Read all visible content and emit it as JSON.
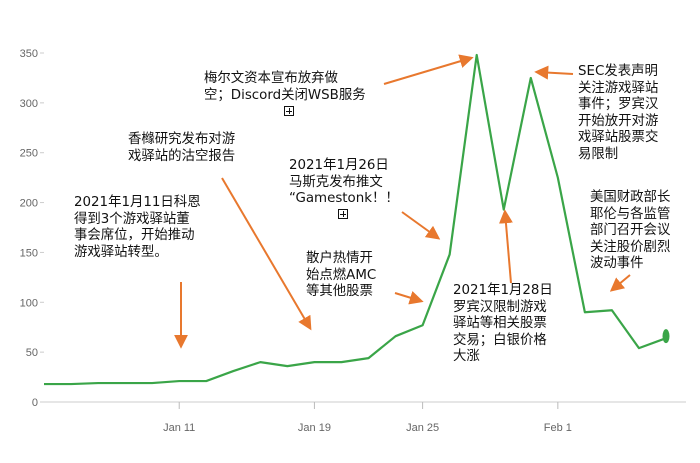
{
  "chart_data": {
    "type": "area",
    "x": [
      "Jan 4",
      "Jan 5",
      "Jan 6",
      "Jan 7",
      "Jan 8",
      "Jan 11",
      "Jan 12",
      "Jan 13",
      "Jan 14",
      "Jan 15",
      "Jan 19",
      "Jan 20",
      "Jan 21",
      "Jan 22",
      "Jan 25",
      "Jan 26",
      "Jan 27",
      "Jan 28",
      "Jan 29",
      "Feb 1",
      "Feb 2",
      "Feb 3",
      "Feb 4",
      "Feb 5"
    ],
    "values": [
      18,
      18,
      19,
      19,
      19,
      21,
      21,
      31,
      40,
      36,
      40,
      40,
      44,
      66,
      77,
      148,
      348,
      193,
      325,
      225,
      90,
      92,
      54,
      64
    ],
    "highlighted": [
      27,
      28,
      29
    ],
    "ylim": [
      0,
      350
    ],
    "yticks": [
      "0",
      "50",
      "100",
      "150",
      "200",
      "250",
      "300",
      "350"
    ],
    "xticks": [
      "Jan 11",
      "Jan 19",
      "Jan 25",
      "Feb 1"
    ],
    "colors": {
      "line": "#3aa548",
      "area_top": "#bfe2c4",
      "arrow": "#e8782e",
      "axis_text": "#666666"
    }
  },
  "annotations": {
    "a1": {
      "lines": [
        "2021年1月11日科恩",
        "得到3个游戏驿站董",
        "事会席位，开始推动",
        "游戏驿站转型。"
      ]
    },
    "a2": {
      "lines": [
        "香橼研究发布对游",
        "戏驿站的沽空报告"
      ]
    },
    "a3": {
      "lines": [
        "梅尔文资本宣布放弃做",
        "空；Discord关闭WSB服务"
      ]
    },
    "a4": {
      "lines": [
        "2021年1月26日",
        "马斯克发布推文",
        "“Gamestonk！！"
      ]
    },
    "a5": {
      "lines": [
        "散户热情开",
        "始点燃AMC",
        "等其他股票"
      ]
    },
    "a6": {
      "lines": [
        "2021年1月28日",
        "罗宾汉限制游戏",
        "驿站等相关股票",
        "交易；白银价格",
        "大涨"
      ]
    },
    "a7": {
      "lines": [
        "SEC发表声明",
        "关注游戏驿站",
        "事件；罗宾汉",
        "开始放开对游",
        "戏驿站股票交",
        "易限制"
      ]
    },
    "a8": {
      "lines": [
        "美国财政部长",
        "耶伦与各监管",
        "部门召开会议",
        "关注股价剧烈",
        "波动事件"
      ]
    }
  },
  "icons": [
    "expand-plus-icon",
    "expand-plus-icon"
  ]
}
